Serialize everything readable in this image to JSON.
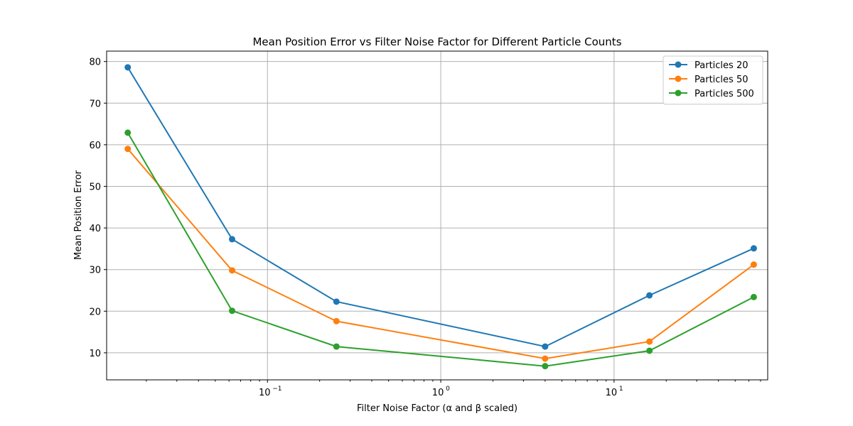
{
  "chart_data": {
    "type": "line",
    "title": "Mean Position Error vs Filter Noise Factor for Different Particle Counts",
    "xlabel": "Filter Noise Factor (α and β scaled)",
    "ylabel": "Mean Position Error",
    "xscale": "log",
    "xlim": [
      0.0118,
      77
    ],
    "ylim": [
      3.5,
      82.5
    ],
    "grid": true,
    "legend_position": "top-right",
    "x": [
      0.015625,
      0.0625,
      0.25,
      4,
      16,
      64
    ],
    "xticks": [
      {
        "value": 0.1,
        "base": "10",
        "exp": "−1"
      },
      {
        "value": 1,
        "base": "10",
        "exp": "0"
      },
      {
        "value": 10,
        "base": "10",
        "exp": "1"
      }
    ],
    "yticks": [
      10,
      20,
      30,
      40,
      50,
      60,
      70,
      80
    ],
    "series": [
      {
        "name": "Particles 20",
        "color": "#1f77b4",
        "values": [
          78.6,
          37.3,
          22.3,
          11.5,
          23.8,
          35.1
        ]
      },
      {
        "name": "Particles 50",
        "color": "#ff7f0e",
        "values": [
          59.0,
          29.8,
          17.6,
          8.6,
          12.7,
          31.2
        ]
      },
      {
        "name": "Particles 500",
        "color": "#2ca02c",
        "values": [
          62.9,
          20.1,
          11.5,
          6.8,
          10.5,
          23.4
        ]
      }
    ]
  }
}
